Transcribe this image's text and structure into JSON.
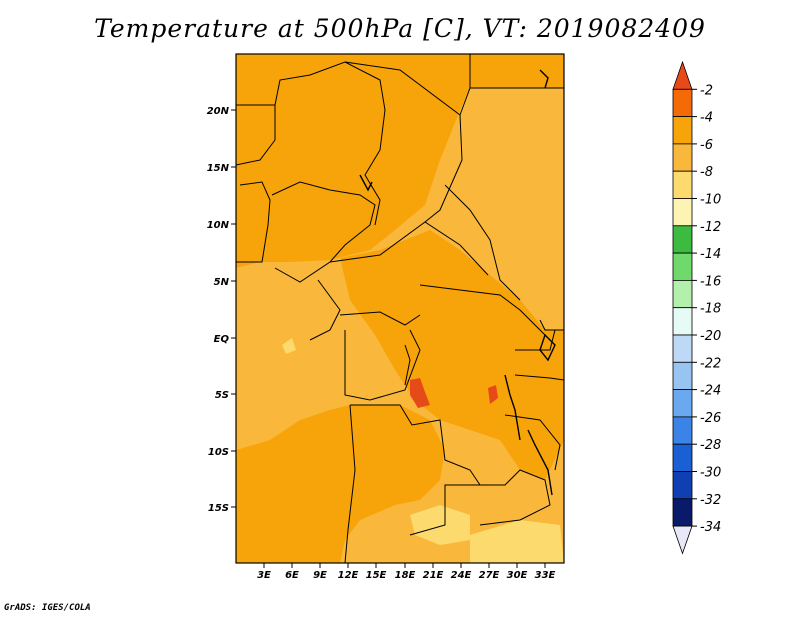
{
  "title": "Temperature at 500hPa [C], VT: 2019082409",
  "credit": "GrADS: IGES/COLA",
  "map": {
    "lat_ticks": [
      "20N",
      "15N",
      "10N",
      "5N",
      "EQ",
      "5S",
      "10S",
      "15S"
    ],
    "lon_ticks": [
      "3E",
      "6E",
      "9E",
      "12E",
      "15E",
      "18E",
      "21E",
      "24E",
      "27E",
      "30E",
      "33E"
    ]
  },
  "colorbar": {
    "labels": [
      "-2",
      "-4",
      "-6",
      "-8",
      "-10",
      "-12",
      "-14",
      "-16",
      "-18",
      "-20",
      "-22",
      "-24",
      "-26",
      "-28",
      "-30",
      "-32",
      "-34"
    ],
    "colors": [
      "#e64a19",
      "#f36a06",
      "#f7a30a",
      "#f9b83c",
      "#fcda6e",
      "#fdf4b4",
      "#3dbb41",
      "#6fd96b",
      "#b3f0ab",
      "#e6fbf6",
      "#bdd9f5",
      "#98c4f2",
      "#6aa9ef",
      "#3b83e6",
      "#1b5fd4",
      "#0f3fb3",
      "#0a1a6a",
      "#e8e8f8"
    ]
  }
}
